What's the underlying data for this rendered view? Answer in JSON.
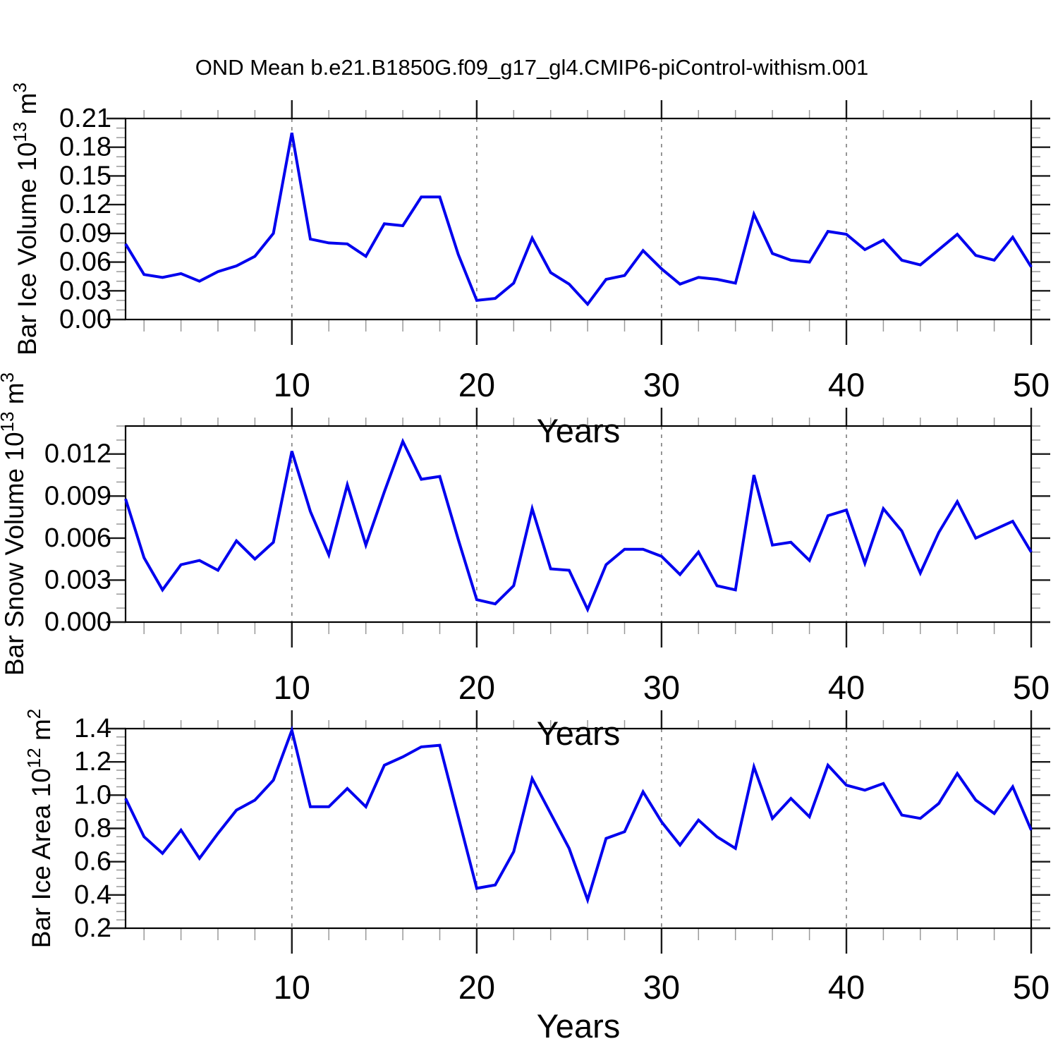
{
  "title": "OND Mean b.e21.B1850G.f09_g17_gl4.CMIP6-piControl-withism.001",
  "x_axis_label": "Years",
  "colors": {
    "line": "#0000ee",
    "frame": "#000000",
    "grid": "#8a8a8a",
    "major_tick": "#1a1a1a",
    "minor_tick": "#999999"
  },
  "chart_data": [
    {
      "type": "line",
      "ylabel_segments": [
        {
          "t": "Bar Ice Volume 10",
          "sup": false
        },
        {
          "t": "13",
          "sup": true
        },
        {
          "t": " m",
          "sup": false
        },
        {
          "t": "3",
          "sup": true
        }
      ],
      "xlabel": "Years",
      "xlim": [
        1,
        50
      ],
      "ylim": [
        0,
        0.21
      ],
      "xtick_major": [
        10,
        20,
        30,
        40,
        50
      ],
      "x_minor_step": 2,
      "grid_x": [
        10,
        20,
        30,
        40
      ],
      "ytick_values": [
        0.0,
        0.03,
        0.06,
        0.09,
        0.12,
        0.15,
        0.18,
        0.21
      ],
      "ytick_labels": [
        "0.00",
        "0.03",
        "0.06",
        "0.09",
        "0.12",
        "0.15",
        "0.18",
        "0.21"
      ],
      "y_minor_step": 0.01,
      "x": [
        1,
        2,
        3,
        4,
        5,
        6,
        7,
        8,
        9,
        10,
        11,
        12,
        13,
        14,
        15,
        16,
        17,
        18,
        19,
        20,
        21,
        22,
        23,
        24,
        25,
        26,
        27,
        28,
        29,
        30,
        31,
        32,
        33,
        34,
        35,
        36,
        37,
        38,
        39,
        40,
        41,
        42,
        43,
        44,
        45,
        46,
        47,
        48,
        49,
        50
      ],
      "values": [
        0.079,
        0.047,
        0.044,
        0.048,
        0.04,
        0.05,
        0.056,
        0.066,
        0.09,
        0.195,
        0.084,
        0.08,
        0.079,
        0.066,
        0.1,
        0.098,
        0.128,
        0.128,
        0.068,
        0.02,
        0.022,
        0.038,
        0.085,
        0.049,
        0.037,
        0.016,
        0.042,
        0.046,
        0.072,
        0.053,
        0.037,
        0.044,
        0.042,
        0.038,
        0.11,
        0.069,
        0.062,
        0.06,
        0.092,
        0.089,
        0.073,
        0.083,
        0.062,
        0.057,
        0.073,
        0.089,
        0.067,
        0.062,
        0.086,
        0.055
      ]
    },
    {
      "type": "line",
      "ylabel_segments": [
        {
          "t": "Bar Snow Volume 10",
          "sup": false
        },
        {
          "t": "13",
          "sup": true
        },
        {
          "t": " m",
          "sup": false
        },
        {
          "t": "3",
          "sup": true
        }
      ],
      "xlabel": "Years",
      "xlim": [
        1,
        50
      ],
      "ylim": [
        0,
        0.014
      ],
      "xtick_major": [
        10,
        20,
        30,
        40,
        50
      ],
      "x_minor_step": 2,
      "grid_x": [
        10,
        20,
        30,
        40
      ],
      "ytick_values": [
        0.0,
        0.003,
        0.006,
        0.009,
        0.012
      ],
      "ytick_labels": [
        "0.000",
        "0.003",
        "0.006",
        "0.009",
        "0.012"
      ],
      "y_minor_step": 0.001,
      "x": [
        1,
        2,
        3,
        4,
        5,
        6,
        7,
        8,
        9,
        10,
        11,
        12,
        13,
        14,
        15,
        16,
        17,
        18,
        19,
        20,
        21,
        22,
        23,
        24,
        25,
        26,
        27,
        28,
        29,
        30,
        31,
        32,
        33,
        34,
        35,
        36,
        37,
        38,
        39,
        40,
        41,
        42,
        43,
        44,
        45,
        46,
        47,
        48,
        49,
        50
      ],
      "values": [
        0.0088,
        0.0046,
        0.0023,
        0.0041,
        0.0044,
        0.0037,
        0.0058,
        0.0045,
        0.0057,
        0.0122,
        0.0079,
        0.0048,
        0.0098,
        0.0055,
        0.0093,
        0.0129,
        0.0102,
        0.0104,
        0.0059,
        0.0016,
        0.0013,
        0.0026,
        0.0081,
        0.0038,
        0.0037,
        0.0009,
        0.0041,
        0.0052,
        0.0052,
        0.0047,
        0.0034,
        0.005,
        0.0026,
        0.0023,
        0.0105,
        0.0055,
        0.0057,
        0.0044,
        0.0076,
        0.008,
        0.0042,
        0.0081,
        0.0065,
        0.0035,
        0.0064,
        0.0086,
        0.006,
        0.0066,
        0.0072,
        0.005
      ]
    },
    {
      "type": "line",
      "ylabel_segments": [
        {
          "t": "Bar Ice Area 10",
          "sup": false
        },
        {
          "t": "12",
          "sup": true
        },
        {
          "t": " m",
          "sup": false
        },
        {
          "t": "2",
          "sup": true
        }
      ],
      "xlabel": "Years",
      "xlim": [
        1,
        50
      ],
      "ylim": [
        0.2,
        1.4
      ],
      "xtick_major": [
        10,
        20,
        30,
        40,
        50
      ],
      "x_minor_step": 2,
      "grid_x": [
        10,
        20,
        30,
        40
      ],
      "ytick_values": [
        0.2,
        0.4,
        0.6,
        0.8,
        1.0,
        1.2,
        1.4
      ],
      "ytick_labels": [
        "0.2",
        "0.4",
        "0.6",
        "0.8",
        "1.0",
        "1.2",
        "1.4"
      ],
      "y_minor_step": 0.05,
      "x": [
        1,
        2,
        3,
        4,
        5,
        6,
        7,
        8,
        9,
        10,
        11,
        12,
        13,
        14,
        15,
        16,
        17,
        18,
        19,
        20,
        21,
        22,
        23,
        24,
        25,
        26,
        27,
        28,
        29,
        30,
        31,
        32,
        33,
        34,
        35,
        36,
        37,
        38,
        39,
        40,
        41,
        42,
        43,
        44,
        45,
        46,
        47,
        48,
        49,
        50
      ],
      "values": [
        0.98,
        0.75,
        0.65,
        0.79,
        0.62,
        0.77,
        0.91,
        0.97,
        1.09,
        1.39,
        0.93,
        0.93,
        1.04,
        0.93,
        1.18,
        1.23,
        1.29,
        1.3,
        0.87,
        0.44,
        0.46,
        0.66,
        1.1,
        0.89,
        0.68,
        0.37,
        0.74,
        0.78,
        1.02,
        0.84,
        0.7,
        0.85,
        0.75,
        0.68,
        1.17,
        0.86,
        0.98,
        0.87,
        1.18,
        1.06,
        1.03,
        1.07,
        0.88,
        0.86,
        0.95,
        1.13,
        0.97,
        0.89,
        1.05,
        0.79
      ]
    }
  ]
}
